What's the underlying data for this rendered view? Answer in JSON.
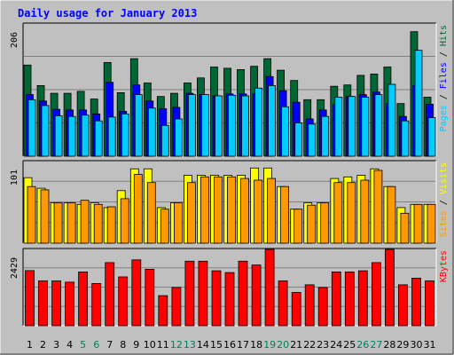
{
  "chart_data": [
    {
      "type": "bar",
      "title": "Daily usage for January 2013",
      "categories": [
        "1",
        "2",
        "3",
        "4",
        "5",
        "6",
        "7",
        "8",
        "9",
        "10",
        "11",
        "12",
        "13",
        "14",
        "15",
        "16",
        "17",
        "18",
        "19",
        "20",
        "21",
        "22",
        "23",
        "24",
        "25",
        "26",
        "27",
        "28",
        "29",
        "30",
        "31"
      ],
      "weekend_days": [
        "5",
        "6",
        "12",
        "13",
        "19",
        "20",
        "26",
        "27"
      ],
      "y_axis_max_label": "206",
      "ylim": [
        0,
        206
      ],
      "right_label_parts": [
        "Pages",
        "Files",
        "Hits"
      ],
      "series": [
        {
          "name": "Hits",
          "color": "#006633",
          "values": [
            142,
            110,
            98,
            98,
            101,
            89,
            146,
            99,
            152,
            114,
            93,
            98,
            114,
            122,
            139,
            137,
            135,
            140,
            152,
            134,
            118,
            88,
            88,
            109,
            111,
            126,
            128,
            139,
            82,
            194,
            92
          ]
        },
        {
          "name": "Files",
          "color": "#0000ff",
          "values": [
            96,
            86,
            73,
            72,
            72,
            66,
            115,
            70,
            111,
            86,
            74,
            76,
            98,
            96,
            94,
            97,
            97,
            97,
            124,
            102,
            84,
            58,
            72,
            80,
            93,
            96,
            100,
            82,
            62,
            110,
            81
          ]
        },
        {
          "name": "Pages",
          "color": "#00ccff",
          "values": [
            88,
            79,
            63,
            62,
            64,
            55,
            61,
            66,
            96,
            75,
            48,
            58,
            96,
            96,
            94,
            95,
            94,
            106,
            110,
            77,
            52,
            50,
            62,
            92,
            93,
            92,
            96,
            112,
            55,
            165,
            60
          ]
        }
      ]
    },
    {
      "type": "bar",
      "categories": [
        "1",
        "2",
        "3",
        "4",
        "5",
        "6",
        "7",
        "8",
        "9",
        "10",
        "11",
        "12",
        "13",
        "14",
        "15",
        "16",
        "17",
        "18",
        "19",
        "20",
        "21",
        "22",
        "23",
        "24",
        "25",
        "26",
        "27",
        "28",
        "29",
        "30",
        "31"
      ],
      "y_axis_max_label": "101",
      "ylim": [
        0,
        101
      ],
      "right_label_parts": [
        "Sites",
        "Visits"
      ],
      "series": [
        {
          "name": "Visits",
          "color": "#ffff00",
          "values": [
            81,
            68,
            50,
            50,
            48,
            50,
            44,
            65,
            92,
            92,
            44,
            50,
            84,
            84,
            84,
            84,
            84,
            93,
            93,
            70,
            42,
            50,
            50,
            80,
            82,
            84,
            92,
            70,
            44,
            48,
            48
          ]
        },
        {
          "name": "Sites",
          "color": "#ff9900",
          "values": [
            70,
            66,
            50,
            50,
            53,
            48,
            45,
            55,
            85,
            75,
            42,
            50,
            75,
            82,
            82,
            82,
            80,
            78,
            80,
            70,
            42,
            47,
            50,
            75,
            75,
            78,
            90,
            70,
            37,
            48,
            48
          ]
        }
      ]
    },
    {
      "type": "bar",
      "categories": [
        "1",
        "2",
        "3",
        "4",
        "5",
        "6",
        "7",
        "8",
        "9",
        "10",
        "11",
        "12",
        "13",
        "14",
        "15",
        "16",
        "17",
        "18",
        "19",
        "20",
        "21",
        "22",
        "23",
        "24",
        "25",
        "26",
        "27",
        "28",
        "29",
        "30",
        "31"
      ],
      "y_axis_max_label": "2429",
      "ylim": [
        0,
        2429
      ],
      "right_label_parts": [
        "KBytes"
      ],
      "series": [
        {
          "name": "KBytes",
          "color": "#ff0000",
          "values": [
            1754,
            1427,
            1427,
            1388,
            1711,
            1345,
            2008,
            1554,
            2095,
            1797,
            957,
            1216,
            2052,
            2052,
            1747,
            1691,
            2052,
            1933,
            2432,
            1427,
            1060,
            1303,
            1216,
            1711,
            1711,
            1747,
            2008,
            2518,
            1303,
            1514,
            1427
          ]
        }
      ]
    }
  ],
  "colors": {
    "background": "#c0c0c0",
    "title_text": "#0000ff",
    "grid": "#808080",
    "weekend_label": "#00805c",
    "weekday_label": "#000000"
  }
}
